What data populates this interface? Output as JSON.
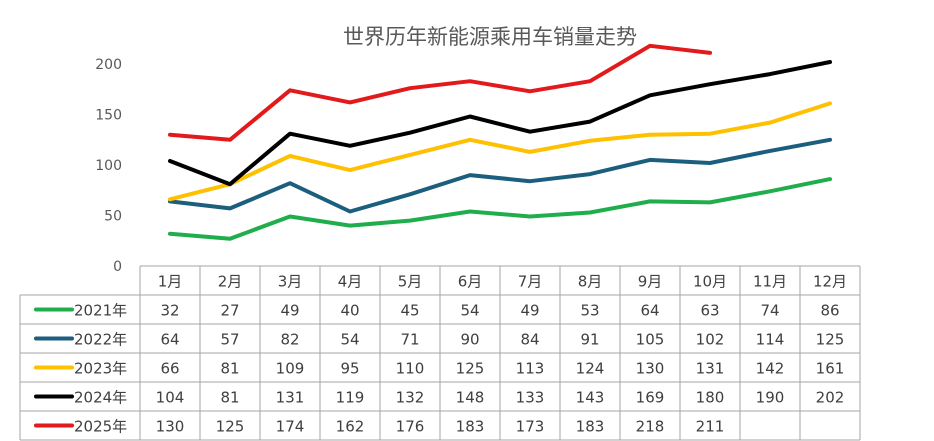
{
  "chart_data": {
    "type": "line",
    "title": "世界历年新能源乘用车销量走势",
    "categories": [
      "1月",
      "2月",
      "3月",
      "4月",
      "5月",
      "6月",
      "7月",
      "8月",
      "9月",
      "10月",
      "11月",
      "12月"
    ],
    "ylim": [
      0,
      200
    ],
    "yticks": [
      0,
      50,
      100,
      150,
      200
    ],
    "grid": false,
    "legend": "table-left",
    "series": [
      {
        "name": "2021年",
        "color": "#1FAE4B",
        "values": [
          32,
          27,
          49,
          40,
          45,
          54,
          49,
          53,
          64,
          63,
          74,
          86
        ]
      },
      {
        "name": "2022年",
        "color": "#1B5E7E",
        "values": [
          64,
          57,
          82,
          54,
          71,
          90,
          84,
          91,
          105,
          102,
          114,
          125
        ]
      },
      {
        "name": "2023年",
        "color": "#FFC000",
        "values": [
          66,
          81,
          109,
          95,
          110,
          125,
          113,
          124,
          130,
          131,
          142,
          161
        ]
      },
      {
        "name": "2024年",
        "color": "#000000",
        "values": [
          104,
          81,
          131,
          119,
          132,
          148,
          133,
          143,
          169,
          180,
          190,
          202
        ]
      },
      {
        "name": "2025年",
        "color": "#E31A1C",
        "values": [
          130,
          125,
          174,
          162,
          176,
          183,
          173,
          183,
          218,
          211,
          null,
          null
        ]
      }
    ]
  }
}
